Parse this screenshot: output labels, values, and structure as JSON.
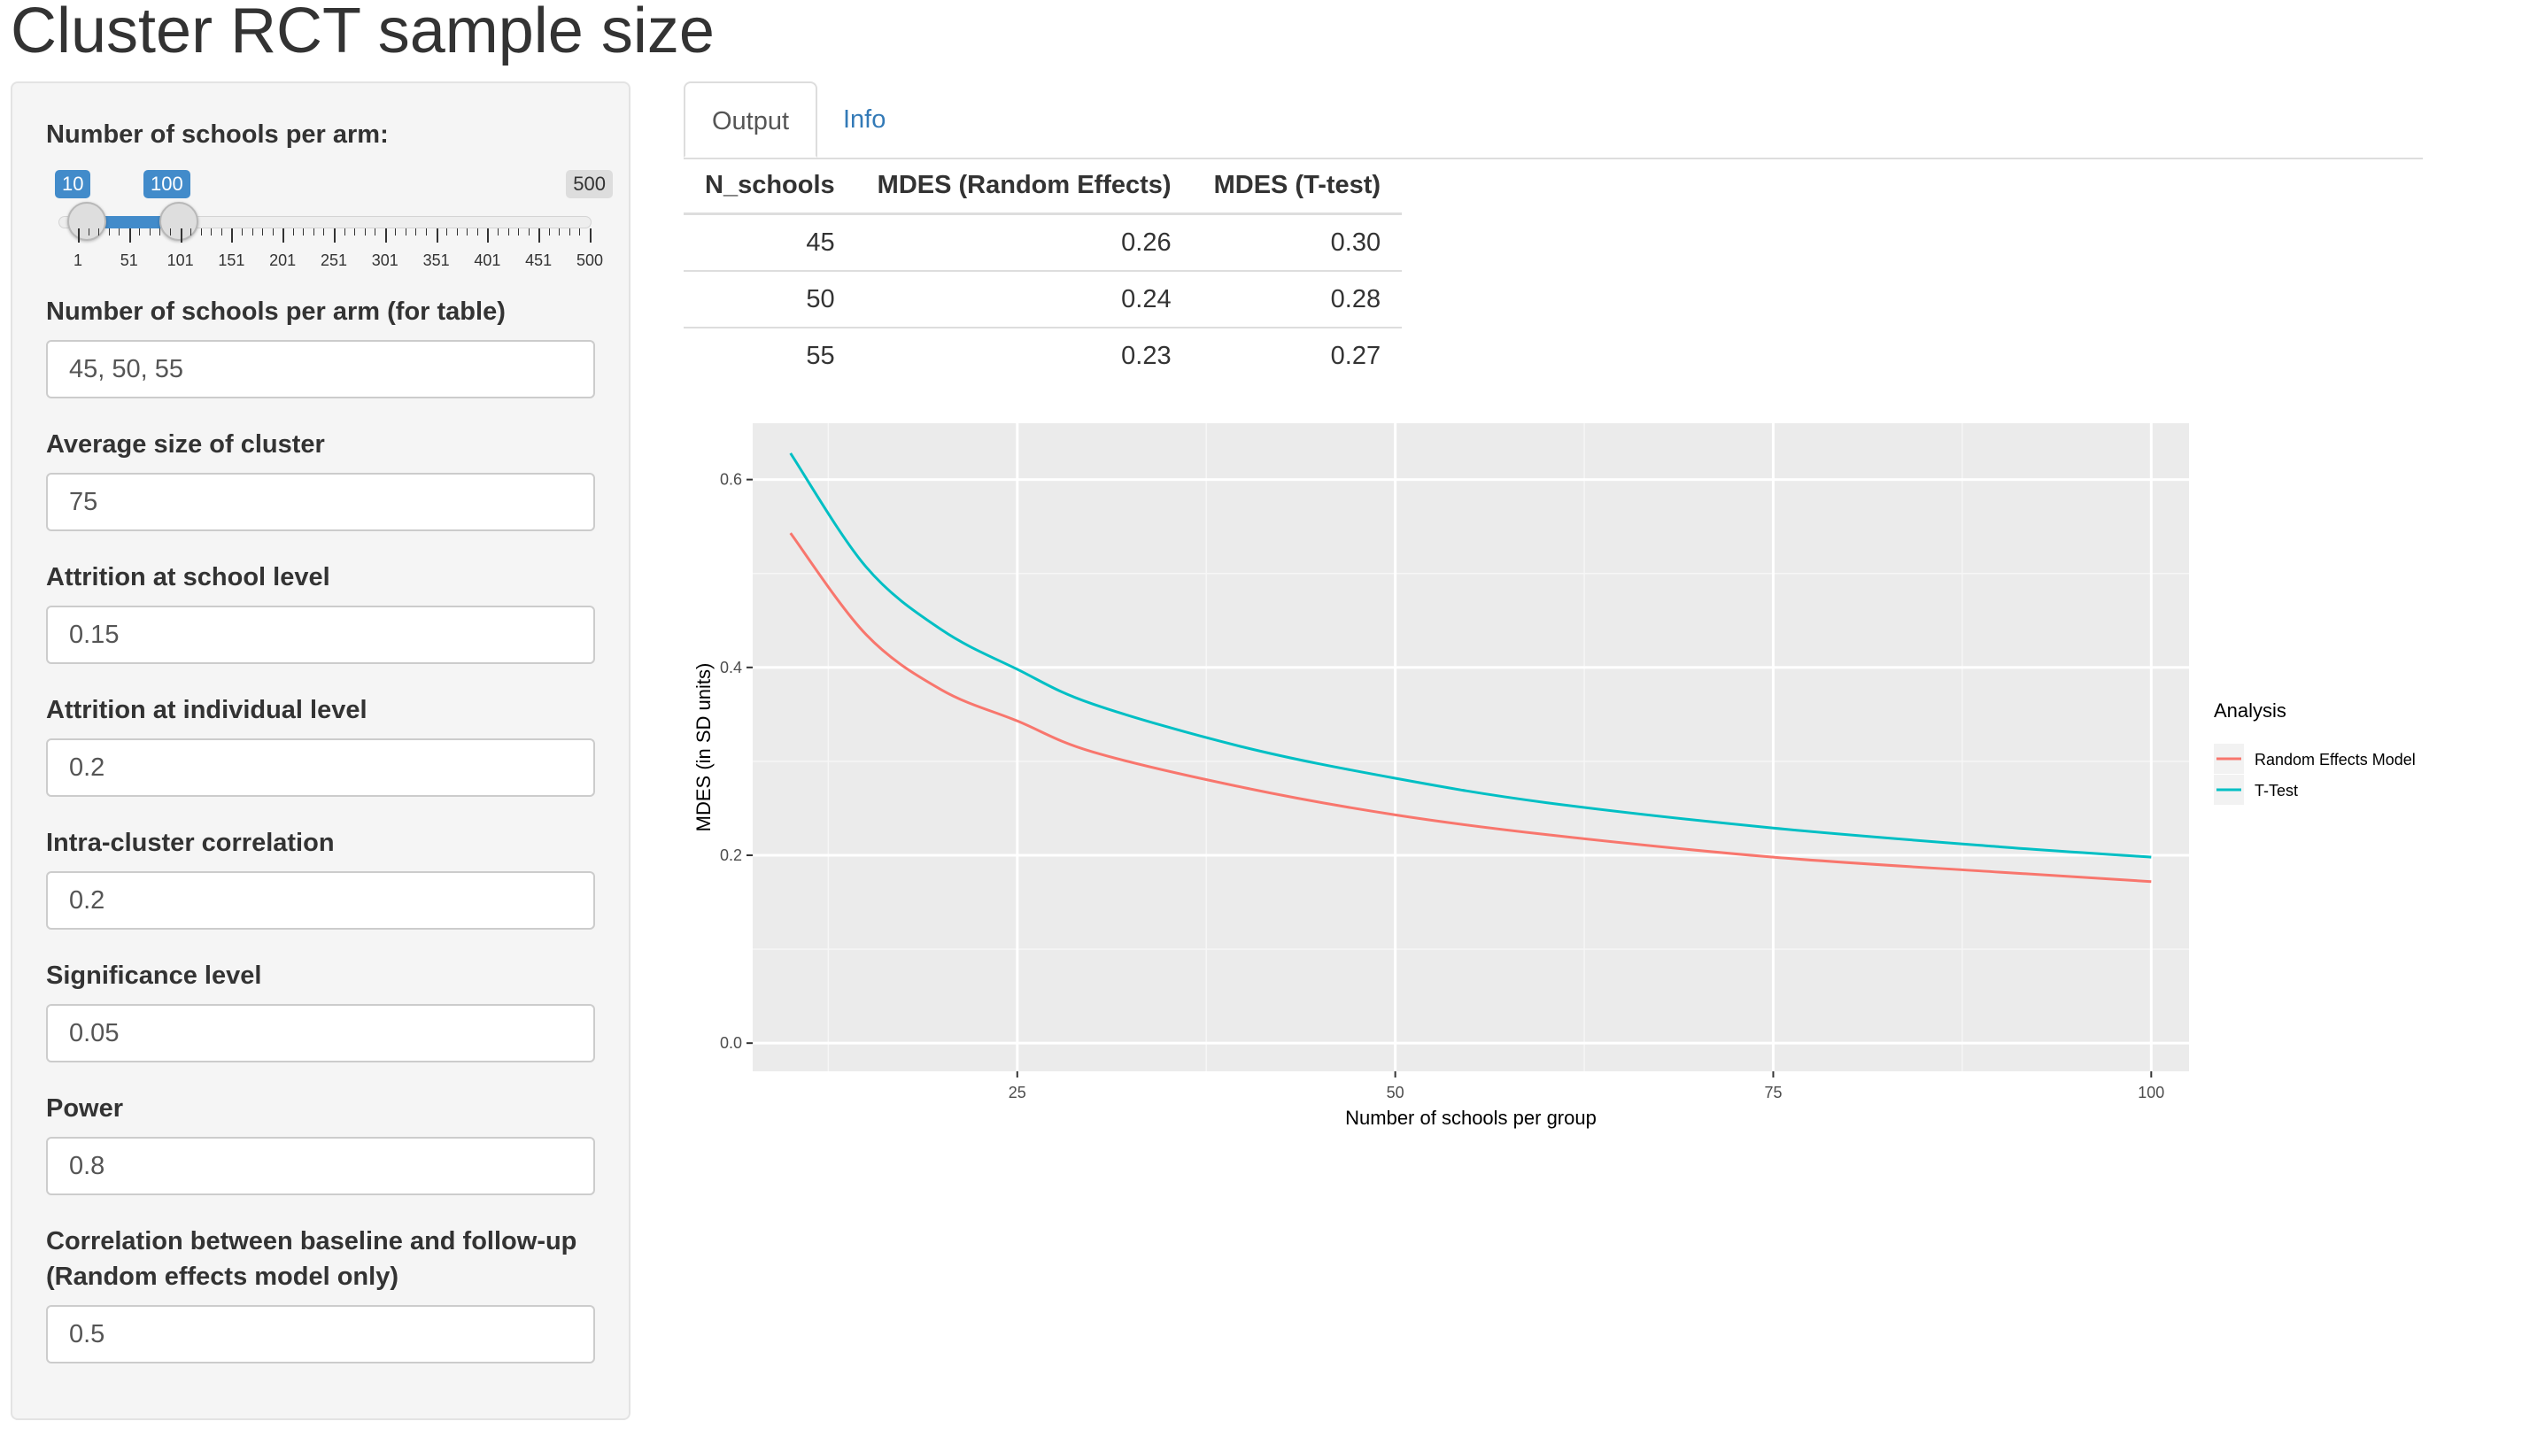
{
  "page": {
    "title": "Cluster RCT sample size"
  },
  "sidebar": {
    "slider": {
      "label": "Number of schools per arm:",
      "min_label": "10",
      "max_label": "100",
      "range_max": "500",
      "min_value": 10,
      "max_value": 100,
      "tick_labels": [
        "1",
        "51",
        "101",
        "151",
        "201",
        "251",
        "301",
        "351",
        "401",
        "451",
        "500"
      ]
    },
    "fields": [
      {
        "label": "Number of schools per arm (for table)",
        "value": "45, 50, 55"
      },
      {
        "label": "Average size of cluster",
        "value": "75"
      },
      {
        "label": "Attrition at school level",
        "value": "0.15"
      },
      {
        "label": "Attrition at individual level",
        "value": "0.2"
      },
      {
        "label": "Intra-cluster correlation",
        "value": "0.2"
      },
      {
        "label": "Significance level",
        "value": "0.05"
      },
      {
        "label": "Power",
        "value": "0.8"
      },
      {
        "label": "Correlation between baseline and follow-up",
        "label2": "(Random effects model only)",
        "value": "0.5"
      }
    ]
  },
  "tabs": [
    {
      "label": "Output",
      "active": true
    },
    {
      "label": "Info",
      "active": false
    }
  ],
  "table": {
    "headers": [
      "N_schools",
      "MDES (Random Effects)",
      "MDES (T-test)"
    ],
    "rows": [
      [
        "45",
        "0.26",
        "0.30"
      ],
      [
        "50",
        "0.24",
        "0.28"
      ],
      [
        "55",
        "0.23",
        "0.27"
      ]
    ]
  },
  "chart_data": {
    "type": "line",
    "xlabel": "Number of schools per group",
    "ylabel": "MDES (in SD units)",
    "xlim": [
      7.5,
      102.5
    ],
    "ylim": [
      -0.03,
      0.66
    ],
    "x_ticks": [
      25,
      50,
      75,
      100
    ],
    "y_ticks": [
      0.0,
      0.2,
      0.4,
      0.6
    ],
    "x_tick_labels": [
      "25",
      "50",
      "75",
      "100"
    ],
    "y_tick_labels": [
      "0.0",
      "0.2",
      "0.4",
      "0.6"
    ],
    "grid": true,
    "legend": {
      "title": "Analysis",
      "position": "right"
    },
    "series": [
      {
        "name": "Random Effects Model",
        "color": "#f8766d",
        "x": [
          10,
          15,
          20,
          25,
          30,
          40,
          50,
          60,
          75,
          90,
          100
        ],
        "y": [
          0.543,
          0.435,
          0.376,
          0.343,
          0.31,
          0.272,
          0.243,
          0.222,
          0.198,
          0.182,
          0.172
        ]
      },
      {
        "name": "T-Test",
        "color": "#00bfc4",
        "x": [
          10,
          15,
          20,
          25,
          30,
          40,
          50,
          60,
          75,
          90,
          100
        ],
        "y": [
          0.628,
          0.507,
          0.44,
          0.398,
          0.361,
          0.315,
          0.282,
          0.256,
          0.229,
          0.209,
          0.198
        ]
      }
    ]
  }
}
